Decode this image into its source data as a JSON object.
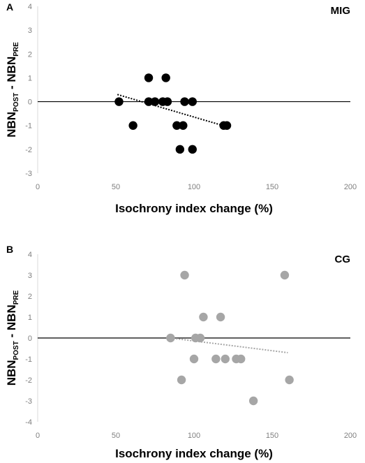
{
  "chart_data": [
    {
      "type": "scatter",
      "panel_letter": "A",
      "title": "MIG",
      "xlabel": "Isochrony index change (%)",
      "ylabel": {
        "main1": "NBN",
        "sub1": "POST",
        "sep": " - ",
        "main2": "NBN",
        "sub2": "PRE"
      },
      "xlim": [
        0,
        200
      ],
      "ylim": [
        -3,
        4
      ],
      "xticks": [
        0,
        50,
        100,
        150,
        200
      ],
      "yticks": [
        -3,
        -2,
        -1,
        0,
        1,
        2,
        3,
        4
      ],
      "point_color": "#000000",
      "trend_color": "#000000",
      "points": [
        {
          "x": 52,
          "y": 0
        },
        {
          "x": 61,
          "y": -1
        },
        {
          "x": 71,
          "y": 1
        },
        {
          "x": 71,
          "y": 0
        },
        {
          "x": 75,
          "y": 0
        },
        {
          "x": 80,
          "y": 0
        },
        {
          "x": 82,
          "y": 1
        },
        {
          "x": 83,
          "y": 0
        },
        {
          "x": 89,
          "y": -1
        },
        {
          "x": 91,
          "y": -2
        },
        {
          "x": 93,
          "y": -1
        },
        {
          "x": 94,
          "y": 0
        },
        {
          "x": 99,
          "y": 0
        },
        {
          "x": 99,
          "y": -2
        },
        {
          "x": 119,
          "y": -1
        },
        {
          "x": 121,
          "y": -1
        }
      ],
      "trendline": {
        "x": [
          51,
          121
        ],
        "y": [
          0.3,
          -1.05
        ]
      }
    },
    {
      "type": "scatter",
      "panel_letter": "B",
      "title": "CG",
      "xlabel": "Isochrony index change (%)",
      "ylabel": {
        "main1": "NBN",
        "sub1": "POST",
        "sep": " - ",
        "main2": "NBN",
        "sub2": "PRE"
      },
      "xlim": [
        0,
        200
      ],
      "ylim": [
        -4,
        4
      ],
      "xticks": [
        0,
        50,
        100,
        150,
        200
      ],
      "yticks": [
        -4,
        -3,
        -2,
        -1,
        0,
        1,
        2,
        3,
        4
      ],
      "point_color": "#a6a6a6",
      "trend_color": "#a6a6a6",
      "points": [
        {
          "x": 85,
          "y": 0
        },
        {
          "x": 92,
          "y": -2
        },
        {
          "x": 94,
          "y": 3
        },
        {
          "x": 100,
          "y": -1
        },
        {
          "x": 101,
          "y": 0
        },
        {
          "x": 104,
          "y": 0
        },
        {
          "x": 106,
          "y": 1
        },
        {
          "x": 114,
          "y": -1
        },
        {
          "x": 117,
          "y": 1
        },
        {
          "x": 120,
          "y": -1
        },
        {
          "x": 127,
          "y": -1
        },
        {
          "x": 130,
          "y": -1
        },
        {
          "x": 138,
          "y": -3
        },
        {
          "x": 158,
          "y": 3
        },
        {
          "x": 161,
          "y": -2
        }
      ],
      "trendline": {
        "x": [
          85,
          160
        ],
        "y": [
          0.0,
          -0.7
        ]
      }
    }
  ]
}
